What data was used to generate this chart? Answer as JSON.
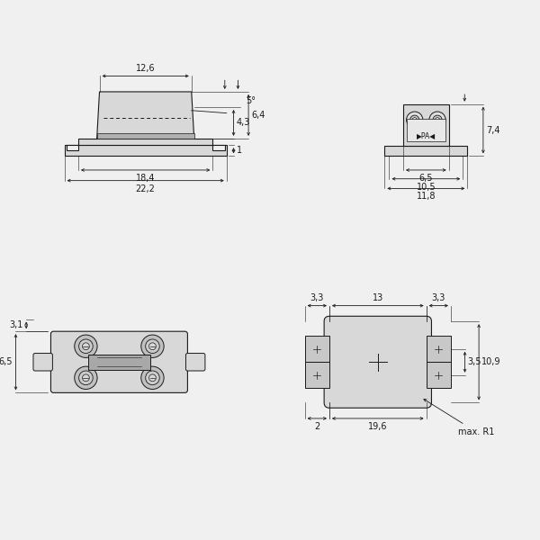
{
  "bg_color": "#f0f0f0",
  "line_color": "#1a1a1a",
  "part_color": "#d8d8d8",
  "part_dark": "#b0b0b0",
  "part_light": "#e8e8e8",
  "dim_color": "#1a1a1a",
  "fig_width": 6.0,
  "fig_height": 6.0,
  "dpi": 100,
  "fs": 7.0
}
